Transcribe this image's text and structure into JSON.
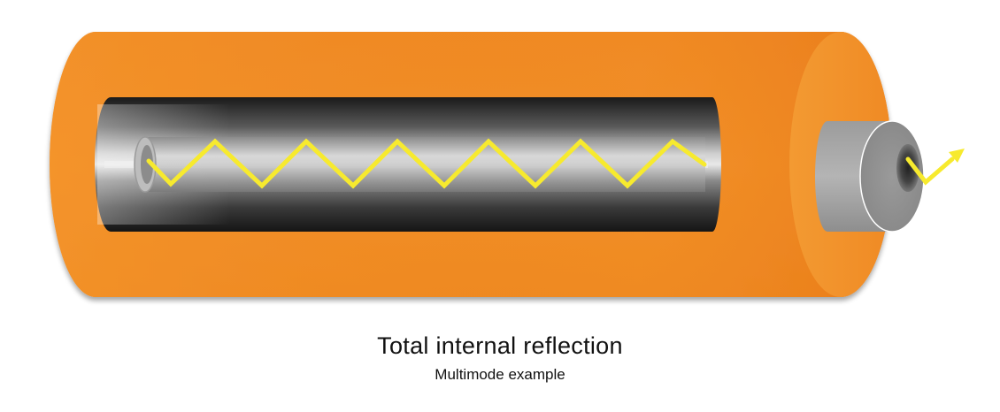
{
  "caption": {
    "title": "Total internal reflection",
    "subtitle": "Multimode example"
  },
  "colors": {
    "jacket": "#f08a24",
    "jacket_dark": "#e46f12",
    "jacket_light": "#f5962d",
    "cladding_dark": "#1e1e1e",
    "cladding_mid": "#9a9a9a",
    "core_light": "#e6e6e6",
    "ferrule": "#a4a4a4",
    "ferrule_face": "#8f8f8f",
    "light_ray": "#f7ea2e"
  },
  "icons": {
    "ray": "zigzag-light-ray-icon",
    "exit_arrow": "exit-arrow-icon"
  }
}
